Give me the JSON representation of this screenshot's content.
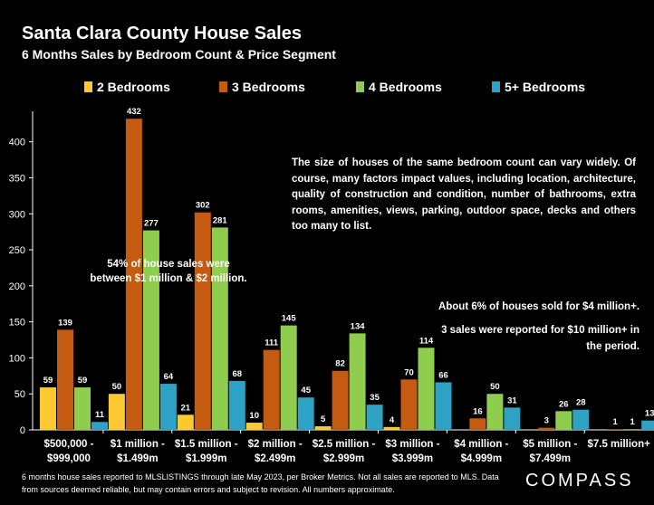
{
  "title": "Santa Clara County House Sales",
  "subtitle": "6 Months Sales by Bedroom Count & Price Segment",
  "brand": "COMPASS",
  "footer": "6 months house sales reported to MLSLISTINGS through late May 2023, per Broker Metrics. Not all sales are reported to MLS. Data from sources deemed reliable, but may contain errors and subject to revision. All numbers approximate.",
  "notes": {
    "main": "The size of houses of the same bedroom count can vary widely. Of course, many factors impact values, including location, architecture, quality of construction and condition, number of bathrooms, extra rooms, amenities, views, parking, outdoor space, decks and others too many to list.",
    "share": "54% of house sales were between $1 million & $2 million.",
    "six": "About 6% of houses sold for $4 million+.",
    "ten": "3 sales were reported for $10 million+ in the period."
  },
  "colors": {
    "2br": "#fcc932",
    "3br": "#c55a11",
    "4br": "#8fcd4f",
    "5br": "#2ea2c4",
    "axis": "#ffffff",
    "background": "#000000"
  },
  "chart_data": {
    "type": "bar",
    "title": "Santa Clara County House Sales",
    "subtitle": "6 Months Sales by Bedroom Count & Price Segment",
    "ylim": [
      0,
      450
    ],
    "yticks": [
      0,
      50,
      100,
      150,
      200,
      250,
      300,
      350,
      400
    ],
    "legend_position": "top",
    "grid": false,
    "categories": [
      [
        "$500,000 -",
        "$999,000"
      ],
      [
        "$1 million -",
        "$1.499m"
      ],
      [
        "$1.5 million -",
        "$1.999m"
      ],
      [
        "$2 million -",
        "$2.499m"
      ],
      [
        "$2.5 million -",
        "$2.999m"
      ],
      [
        "$3 million -",
        "$3.999m"
      ],
      [
        "$4 million -",
        "$4.999m"
      ],
      [
        "$5 million -",
        "$7.499m"
      ],
      [
        "$7.5 million+"
      ]
    ],
    "series": [
      {
        "name": "2 Bedrooms",
        "key": "2br",
        "values": [
          59,
          50,
          21,
          10,
          5,
          4,
          null,
          null,
          null
        ]
      },
      {
        "name": "3 Bedrooms",
        "key": "3br",
        "values": [
          139,
          432,
          302,
          111,
          82,
          70,
          16,
          3,
          1
        ]
      },
      {
        "name": "4 Bedrooms",
        "key": "4br",
        "values": [
          59,
          277,
          281,
          145,
          134,
          114,
          50,
          26,
          1
        ]
      },
      {
        "name": "5+ Bedrooms",
        "key": "5br",
        "values": [
          11,
          64,
          68,
          45,
          35,
          66,
          31,
          28,
          13
        ]
      }
    ]
  }
}
